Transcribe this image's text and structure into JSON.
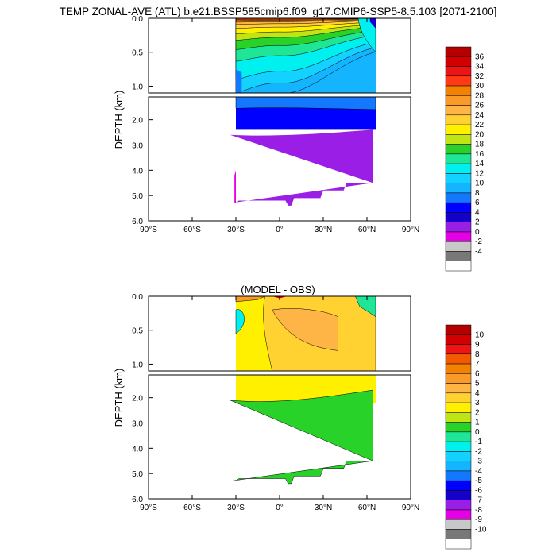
{
  "figure": {
    "title": "TEMP ZONAL-AVE (ATL) b.e21.BSSP585cmip6.f09_g17.CMIP6-SSP5-8.5.103 [2071-2100]"
  },
  "chart_data": [
    {
      "type": "heatmap",
      "title": "",
      "ylabel": "DEPTH (km)",
      "xlabel": "",
      "x_ticks": [
        "90°S",
        "60°S",
        "30°S",
        "0°",
        "30°N",
        "60°N",
        "90°N"
      ],
      "upper_y_ticks": [
        "0.0",
        "0.5",
        "1.0"
      ],
      "lower_y_ticks": [
        "2.0",
        "3.0",
        "4.0",
        "5.0",
        "6.0"
      ],
      "xlim_lat": [
        -90,
        90
      ],
      "ylim_km": [
        0,
        6
      ],
      "upper_panel_range_km": [
        0,
        1.1
      ],
      "colorbar": {
        "labels": [
          "36",
          "34",
          "32",
          "30",
          "28",
          "26",
          "24",
          "22",
          "20",
          "18",
          "16",
          "14",
          "12",
          "10",
          "8",
          "6",
          "4",
          "2",
          "0",
          "-2",
          "-4"
        ],
        "colors": [
          "#b40000",
          "#d20000",
          "#ee1414",
          "#ff3a14",
          "#f28200",
          "#fa9a28",
          "#ffb446",
          "#ffd232",
          "#fff000",
          "#c0e414",
          "#28d228",
          "#1ee696",
          "#00f0f0",
          "#14d2ff",
          "#14b4ff",
          "#1478ff",
          "#0000ff",
          "#1400c8",
          "#9b1ee6",
          "#e600e6",
          "#c8c8c8",
          "#787878",
          "#ffffff"
        ]
      }
    },
    {
      "type": "heatmap",
      "title": "(MODEL - OBS)",
      "ylabel": "DEPTH (km)",
      "xlabel": "",
      "x_ticks": [
        "90°S",
        "60°S",
        "30°S",
        "0°",
        "30°N",
        "60°N",
        "90°N"
      ],
      "upper_y_ticks": [
        "0.0",
        "0.5",
        "1.0"
      ],
      "lower_y_ticks": [
        "2.0",
        "3.0",
        "4.0",
        "5.0",
        "6.0"
      ],
      "xlim_lat": [
        -90,
        90
      ],
      "ylim_km": [
        0,
        6
      ],
      "upper_panel_range_km": [
        0,
        1.1
      ],
      "colorbar": {
        "labels": [
          "10",
          "9",
          "8",
          "7",
          "6",
          "5",
          "4",
          "3",
          "2",
          "1",
          "0",
          "-1",
          "-2",
          "-3",
          "-4",
          "-5",
          "-6",
          "-7",
          "-8",
          "-9",
          "-10"
        ],
        "colors": [
          "#b40000",
          "#d20000",
          "#ee1414",
          "#f25a00",
          "#f28200",
          "#fa9a28",
          "#ffb446",
          "#ffd232",
          "#fff000",
          "#c0e414",
          "#28d228",
          "#1ee696",
          "#00f0f0",
          "#14d2ff",
          "#14b4ff",
          "#1478ff",
          "#0000ff",
          "#1400c8",
          "#9b1ee6",
          "#e600e6",
          "#c8c8c8",
          "#787878",
          "#ffffff"
        ]
      }
    }
  ]
}
